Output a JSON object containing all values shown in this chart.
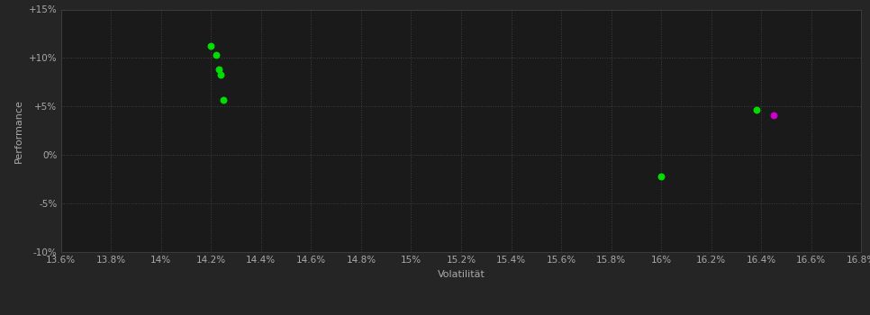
{
  "background_color": "#252525",
  "plot_bg_color": "#1a1a1a",
  "grid_color": "#404040",
  "axis_label_color": "#aaaaaa",
  "tick_label_color": "#aaaaaa",
  "xlabel": "Volatilität",
  "ylabel": "Performance",
  "xlim": [
    0.136,
    0.168
  ],
  "ylim": [
    -0.1,
    0.15
  ],
  "xticks": [
    0.136,
    0.138,
    0.14,
    0.142,
    0.144,
    0.146,
    0.148,
    0.15,
    0.152,
    0.154,
    0.156,
    0.158,
    0.16,
    0.162,
    0.164,
    0.166,
    0.168
  ],
  "xtick_labels": [
    "13.6%",
    "13.8%",
    "14%",
    "14.2%",
    "14.4%",
    "14.6%",
    "14.8%",
    "15%",
    "15.2%",
    "15.4%",
    "15.6%",
    "15.8%",
    "16%",
    "16.2%",
    "16.4%",
    "16.6%",
    "16.8%"
  ],
  "yticks": [
    -0.1,
    -0.05,
    0.0,
    0.05,
    0.1,
    0.15
  ],
  "ytick_labels": [
    "-10%",
    "-5%",
    "0%",
    "+5%",
    "+10%",
    "+15%"
  ],
  "green_dots": [
    [
      0.142,
      0.112
    ],
    [
      0.1422,
      0.103
    ],
    [
      0.1423,
      0.088
    ],
    [
      0.1424,
      0.083
    ],
    [
      0.1425,
      0.057
    ],
    [
      0.16,
      -0.022
    ],
    [
      0.1638,
      0.047
    ]
  ],
  "magenta_dots": [
    [
      0.1645,
      0.041
    ]
  ],
  "dot_size": 22,
  "green_color": "#00dd00",
  "magenta_color": "#cc00cc",
  "spine_color": "#444444",
  "grid_linestyle": ":",
  "grid_linewidth": 0.7,
  "xlabel_fontsize": 8,
  "ylabel_fontsize": 8,
  "tick_fontsize": 7.5
}
